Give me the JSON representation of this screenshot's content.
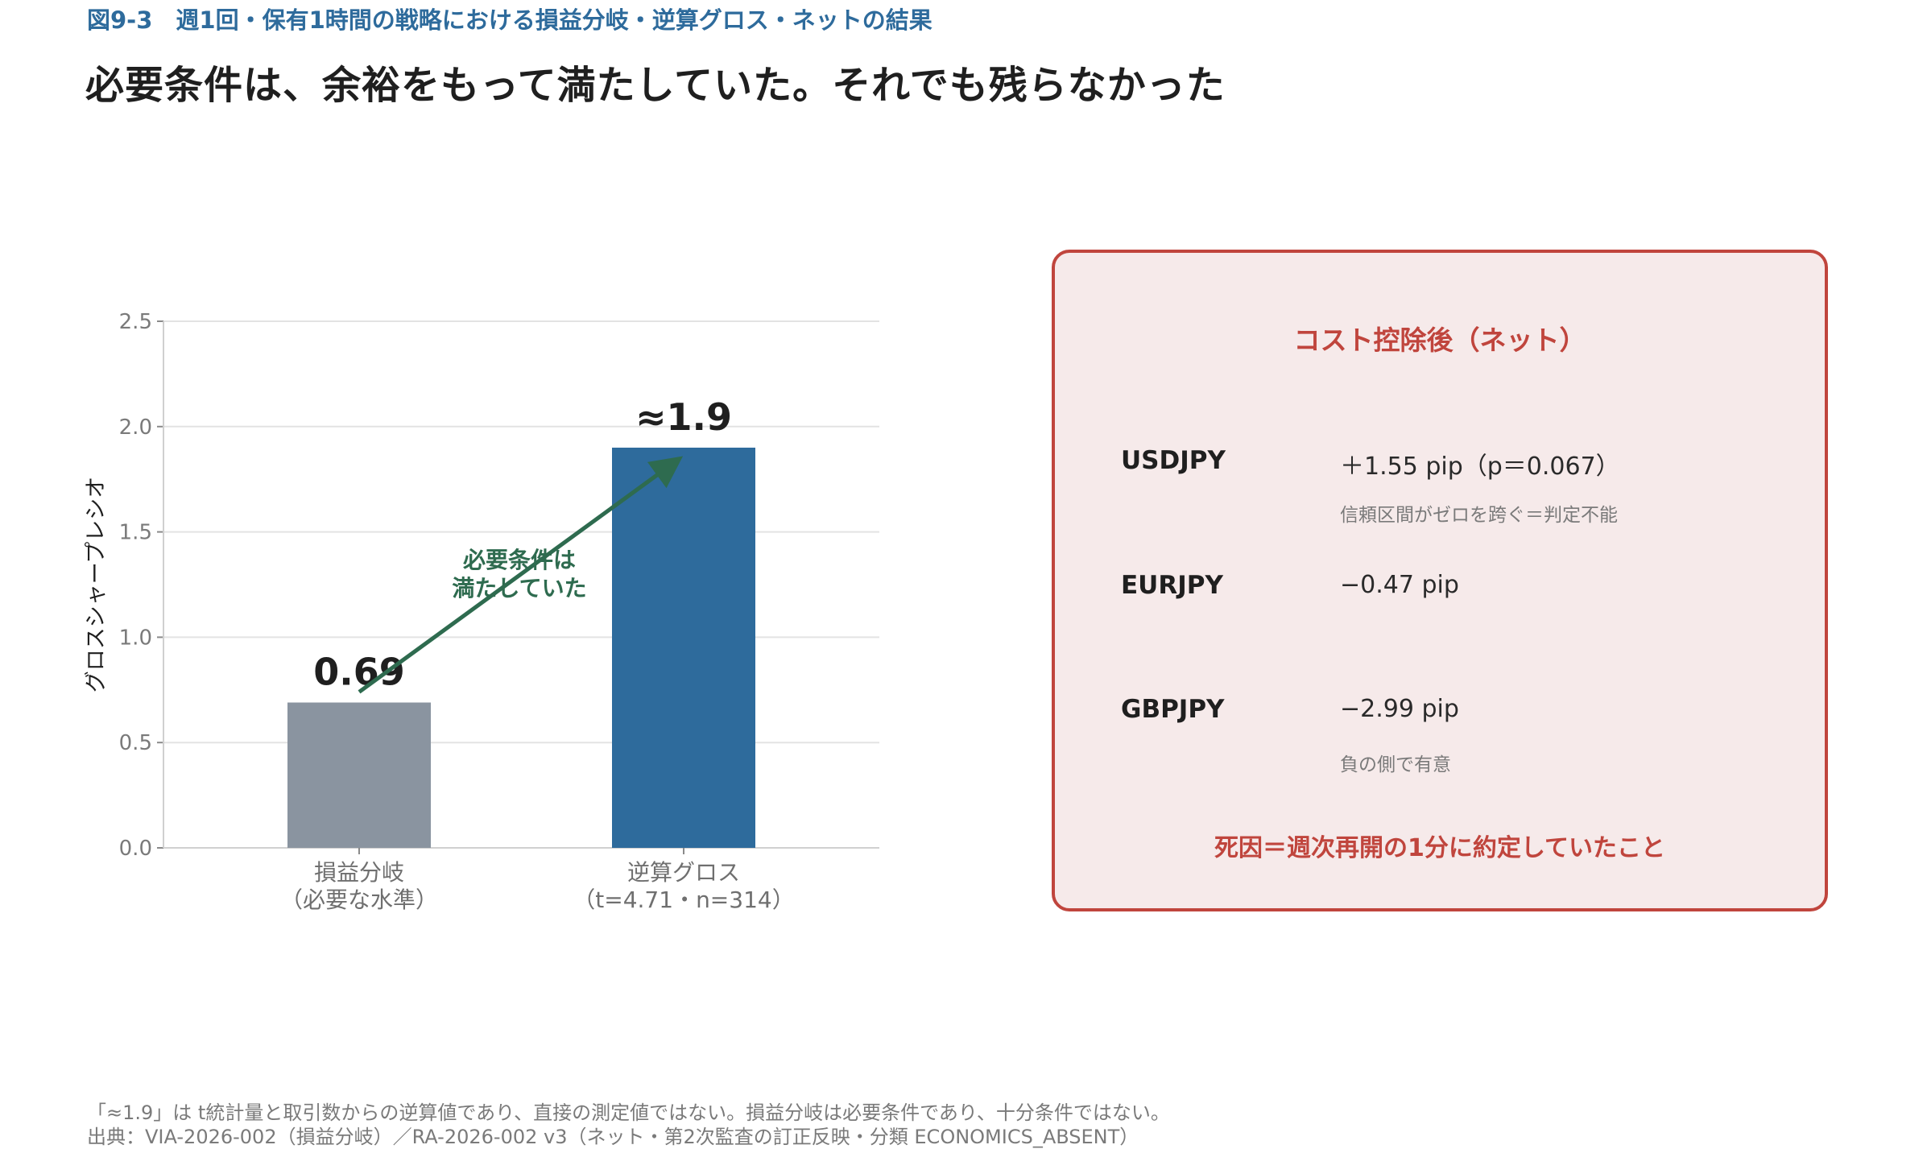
{
  "figure_label": "図9-3　週1回・保有1時間の戦略における損益分岐・逆算グロス・ネットの結果",
  "headline": "必要条件は、余裕をもって満たしていた。それでも残らなかった",
  "chart_data": {
    "type": "bar",
    "categories": [
      {
        "line1": "損益分岐",
        "line2": "（必要な水準）"
      },
      {
        "line1": "逆算グロス",
        "line2": "（t=4.71・n=314）"
      }
    ],
    "values": [
      0.69,
      1.9
    ],
    "value_labels": [
      "0.69",
      "≈1.9"
    ],
    "bar_colors": [
      "#8a94a0",
      "#2e6b9c"
    ],
    "ylabel": "グロスシャープレシオ",
    "ylim": [
      0,
      2.5
    ],
    "yticks": [
      "0.0",
      "0.5",
      "1.0",
      "1.5",
      "2.0",
      "2.5"
    ],
    "grid": true,
    "annotation": {
      "lines": [
        "必要条件は",
        "満たしていた"
      ],
      "color": "#2e6b4f",
      "arrow_from": 0.74,
      "arrow_to": 1.86
    }
  },
  "panel": {
    "title": "コスト控除後（ネット）",
    "rows": [
      {
        "pair": "USDJPY",
        "value": "＋1.55 pip（p＝0.067）",
        "note": "信頼区間がゼロを跨ぐ＝判定不能"
      },
      {
        "pair": "EURJPY",
        "value": "−0.47 pip",
        "note": ""
      },
      {
        "pair": "GBPJPY",
        "value": "−2.99 pip",
        "note": "負の側で有意"
      }
    ],
    "footer": "死因＝週次再開の1分に約定していたこと",
    "accent_color": "#c0453d",
    "background_color": "#f6eaea"
  },
  "footnotes": [
    "「≈1.9」は t統計量と取引数からの逆算値であり、直接の測定値ではない。損益分岐は必要条件であり、十分条件ではない。",
    "出典：VIA-2026-002（損益分岐）／RA-2026-002 v3（ネット・第2次監査の訂正反映・分類 ECONOMICS_ABSENT）"
  ]
}
